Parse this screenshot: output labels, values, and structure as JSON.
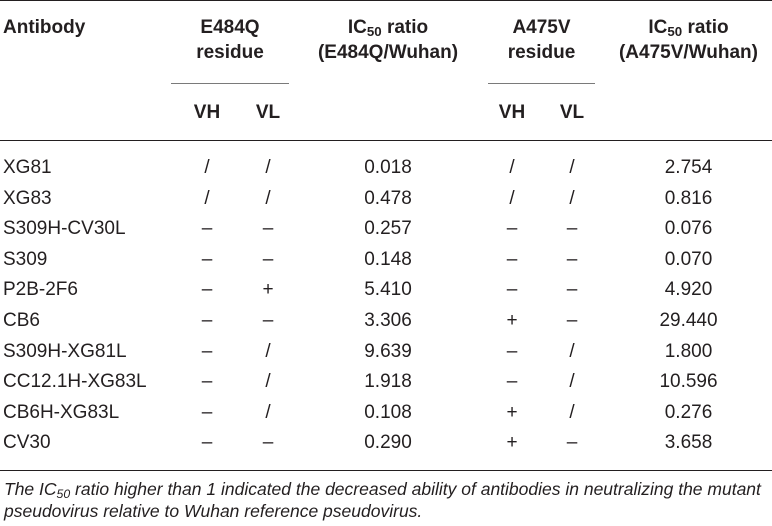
{
  "headers": {
    "antibody": "Antibody",
    "e484q_residue": [
      "E484Q",
      "residue"
    ],
    "ic50_e484q": [
      "IC",
      "50",
      " ratio",
      "(E484Q/Wuhan)"
    ],
    "a475v_residue": [
      "A475V",
      "residue"
    ],
    "ic50_a475v": [
      "IC",
      "50",
      " ratio",
      "(A475V/Wuhan)"
    ],
    "vh": "VH",
    "vl": "VL"
  },
  "rows": [
    {
      "antibody": "XG81",
      "e_vh": "/",
      "e_vl": "/",
      "e_ratio": "0.018",
      "a_vh": "/",
      "a_vl": "/",
      "a_ratio": "2.754"
    },
    {
      "antibody": "XG83",
      "e_vh": "/",
      "e_vl": "/",
      "e_ratio": "0.478",
      "a_vh": "/",
      "a_vl": "/",
      "a_ratio": "0.816"
    },
    {
      "antibody": "S309H-CV30L",
      "e_vh": "–",
      "e_vl": "–",
      "e_ratio": "0.257",
      "a_vh": "–",
      "a_vl": "–",
      "a_ratio": "0.076"
    },
    {
      "antibody": "S309",
      "e_vh": "–",
      "e_vl": "–",
      "e_ratio": "0.148",
      "a_vh": "–",
      "a_vl": "–",
      "a_ratio": "0.070"
    },
    {
      "antibody": "P2B-2F6",
      "e_vh": "–",
      "e_vl": "+",
      "e_ratio": "5.410",
      "a_vh": "–",
      "a_vl": "–",
      "a_ratio": "4.920"
    },
    {
      "antibody": "CB6",
      "e_vh": "–",
      "e_vl": "–",
      "e_ratio": "3.306",
      "a_vh": "+",
      "a_vl": "–",
      "a_ratio": "29.440"
    },
    {
      "antibody": "S309H-XG81L",
      "e_vh": "–",
      "e_vl": "/",
      "e_ratio": "9.639",
      "a_vh": "–",
      "a_vl": "/",
      "a_ratio": "1.800"
    },
    {
      "antibody": "CC12.1H-XG83L",
      "e_vh": "–",
      "e_vl": "/",
      "e_ratio": "1.918",
      "a_vh": "–",
      "a_vl": "/",
      "a_ratio": "10.596"
    },
    {
      "antibody": "CB6H-XG83L",
      "e_vh": "–",
      "e_vl": "/",
      "e_ratio": "0.108",
      "a_vh": "+",
      "a_vl": "/",
      "a_ratio": "0.276"
    },
    {
      "antibody": "CV30",
      "e_vh": "–",
      "e_vl": "–",
      "e_ratio": "0.290",
      "a_vh": "+",
      "a_vl": "–",
      "a_ratio": "3.658"
    }
  ],
  "footnote": {
    "part1": "The IC",
    "sub": "50",
    "part2": " ratio higher than 1 indicated the decreased ability of antibodies in neutralizing the mutant pseudovirus relative to Wuhan reference pseudovirus."
  }
}
